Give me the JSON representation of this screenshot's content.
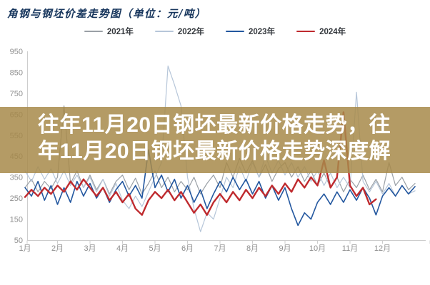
{
  "overlay": {
    "line1": "往年11月20日钢坯最新价格走势，往",
    "line2": "年11月20日钢坯最新价格走势深度解",
    "band_color": "rgba(167,138,74,0.85)",
    "text_color": "#ffffff"
  },
  "axis": {
    "label_color": "#8f8f8f",
    "line_color": "#cdcdcd"
  },
  "chart_data": {
    "type": "line",
    "title": "角钢与钢坯价差走势图（单位：元/吨）",
    "xlabel": "",
    "ylabel": "元/吨",
    "ylim": [
      50,
      950
    ],
    "grid": false,
    "legend_position": "top-center",
    "y_ticks": [
      50,
      150,
      250,
      350,
      450,
      550,
      650,
      750,
      850,
      950
    ],
    "x_labels": [
      "1月",
      "2月",
      "3月",
      "4月",
      "5月",
      "6月",
      "7月",
      "8月",
      "9月",
      "10月",
      "11月",
      "12月"
    ],
    "x_start": 1.0,
    "x_step": 0.2,
    "series": [
      {
        "name": "2021年",
        "color": "#9aa0a6",
        "width": 1.2,
        "values": [
          300,
          340,
          280,
          330,
          295,
          350,
          690,
          320,
          380,
          300,
          360,
          290,
          340,
          270,
          330,
          360,
          290,
          345,
          270,
          320,
          380,
          300,
          350,
          280,
          330,
          290,
          350,
          270,
          320,
          360,
          300,
          420,
          350,
          440,
          370,
          430,
          350,
          410,
          330,
          390,
          420,
          350,
          400,
          330,
          380,
          310,
          370,
          300,
          350,
          280,
          340,
          300,
          360,
          290,
          340,
          280,
          420,
          310,
          350,
          290,
          320
        ]
      },
      {
        "name": "2022年",
        "color": "#b6c6d9",
        "width": 1.2,
        "values": [
          380,
          330,
          400,
          340,
          390,
          320,
          380,
          310,
          360,
          300,
          350,
          280,
          340,
          260,
          320,
          240,
          200,
          260,
          210,
          280,
          350,
          420,
          880,
          790,
          690,
          350,
          200,
          90,
          180,
          150,
          250,
          350,
          300,
          400,
          330,
          420,
          350,
          450,
          370,
          430,
          360,
          420,
          350,
          400,
          330,
          380,
          310,
          370,
          300,
          350,
          300,
          755,
          330,
          280,
          330,
          270,
          320,
          260,
          310,
          270,
          285
        ]
      },
      {
        "name": "2023年",
        "color": "#23579f",
        "width": 1.6,
        "values": [
          300,
          260,
          330,
          240,
          310,
          220,
          300,
          230,
          330,
          260,
          320,
          250,
          300,
          230,
          290,
          330,
          260,
          310,
          250,
          480,
          300,
          360,
          280,
          340,
          250,
          310,
          230,
          290,
          200,
          270,
          330,
          280,
          350,
          290,
          340,
          270,
          330,
          250,
          310,
          240,
          300,
          200,
          120,
          180,
          150,
          230,
          270,
          220,
          280,
          230,
          290,
          240,
          300,
          250,
          170,
          260,
          300,
          260,
          310,
          270,
          305
        ]
      },
      {
        "name": "2024年",
        "color": "#bf2a2e",
        "width": 2.4,
        "values": [
          255,
          290,
          260,
          300,
          270,
          310,
          280,
          330,
          290,
          340,
          300,
          260,
          300,
          240,
          280,
          230,
          270,
          200,
          170,
          240,
          280,
          250,
          290,
          240,
          280,
          230,
          180,
          220,
          170,
          230,
          270,
          230,
          280,
          240,
          290,
          250,
          300,
          260,
          310,
          270,
          320,
          280,
          340,
          300,
          350,
          310,
          430,
          300,
          350,
          660,
          310,
          260,
          300,
          220,
          245
        ]
      }
    ]
  }
}
